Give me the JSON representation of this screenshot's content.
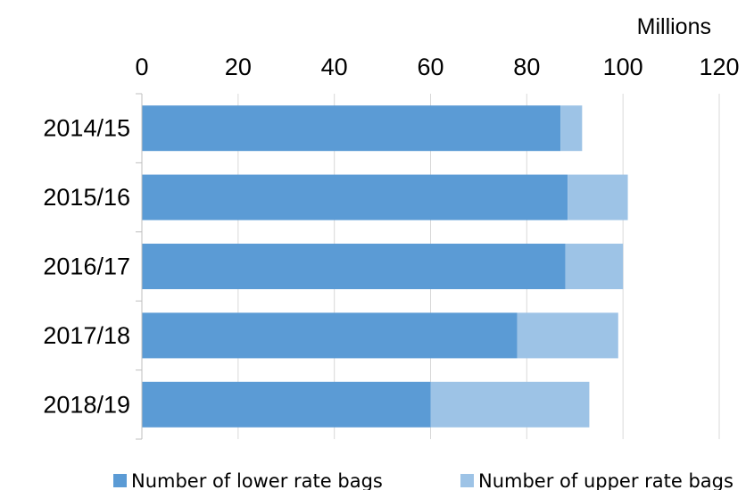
{
  "chart_data": {
    "type": "bar",
    "orientation": "horizontal",
    "stacked": true,
    "categories": [
      "2014/15",
      "2015/16",
      "2016/17",
      "2017/18",
      "2018/19"
    ],
    "series": [
      {
        "name": "Number of lower rate bags",
        "color": "#5b9bd5",
        "values": [
          87,
          88.5,
          88,
          78,
          60
        ]
      },
      {
        "name": "Number of upper rate bags",
        "color": "#9dc3e6",
        "values": [
          4.5,
          12.5,
          12,
          21,
          33
        ]
      }
    ],
    "unit_label": "Millions",
    "xlim": [
      0,
      120
    ],
    "x_ticks": [
      0,
      20,
      40,
      60,
      80,
      100,
      120
    ],
    "x_tick_labels": [
      "0",
      "20",
      "40",
      "60",
      "80",
      "100",
      "120"
    ],
    "x_axis_position": "top",
    "grid": true,
    "legend_position": "bottom"
  }
}
